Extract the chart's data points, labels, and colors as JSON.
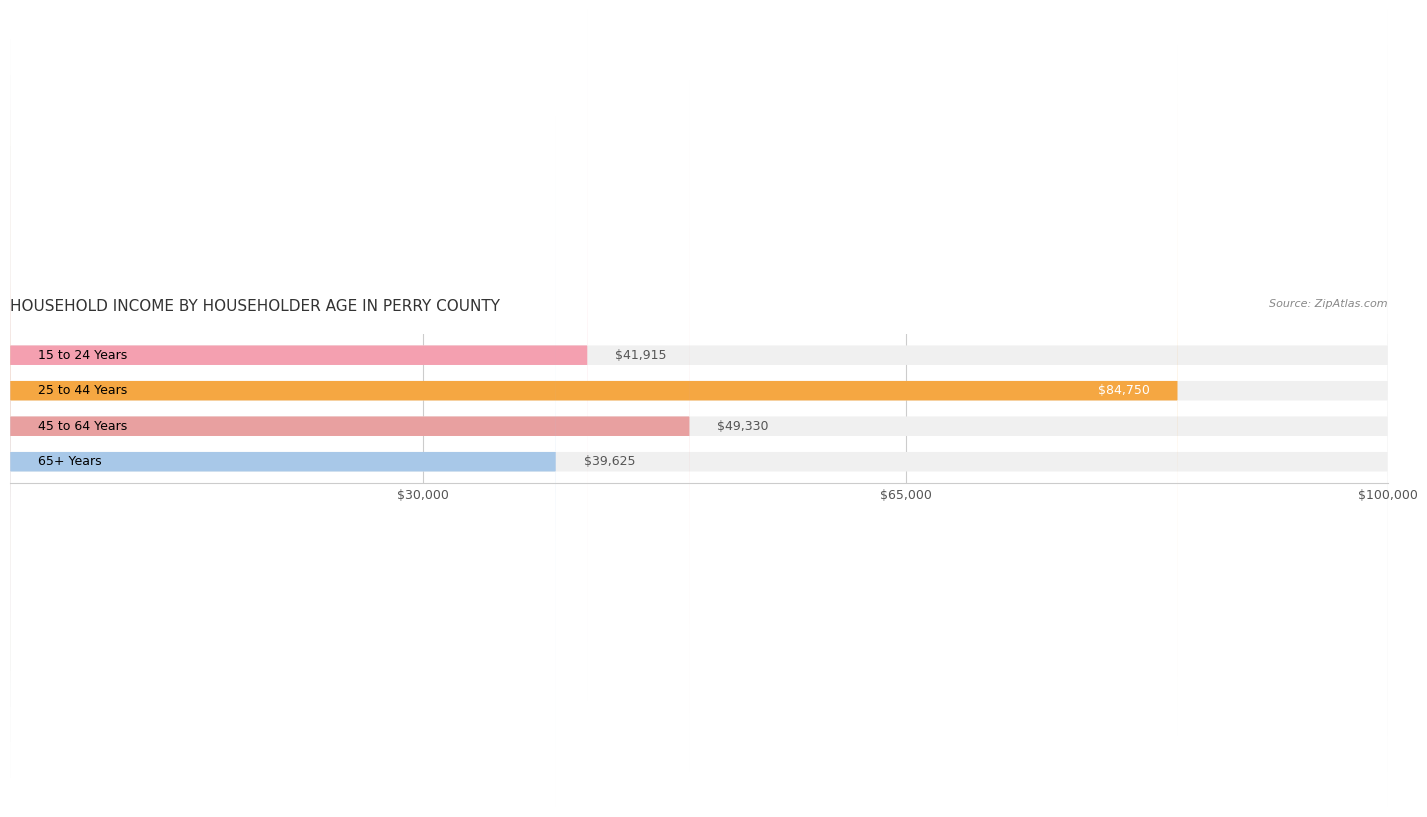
{
  "title": "HOUSEHOLD INCOME BY HOUSEHOLDER AGE IN PERRY COUNTY",
  "source": "Source: ZipAtlas.com",
  "categories": [
    "15 to 24 Years",
    "25 to 44 Years",
    "45 to 64 Years",
    "65+ Years"
  ],
  "values": [
    41915,
    84750,
    49330,
    39625
  ],
  "bar_colors": [
    "#f4a0b0",
    "#f5a742",
    "#e8a0a0",
    "#a8c8e8"
  ],
  "bar_bg_color": "#f0f0f0",
  "label_texts": [
    "$41,915",
    "$84,750",
    "$49,330",
    "$39,625"
  ],
  "xlim": [
    0,
    100000
  ],
  "xticks": [
    30000,
    65000,
    100000
  ],
  "xticklabels": [
    "$30,000",
    "$65,000",
    "$100,000"
  ],
  "background_color": "#ffffff",
  "bar_height": 0.55,
  "title_fontsize": 11,
  "tick_fontsize": 9,
  "label_fontsize": 9,
  "category_fontsize": 9
}
